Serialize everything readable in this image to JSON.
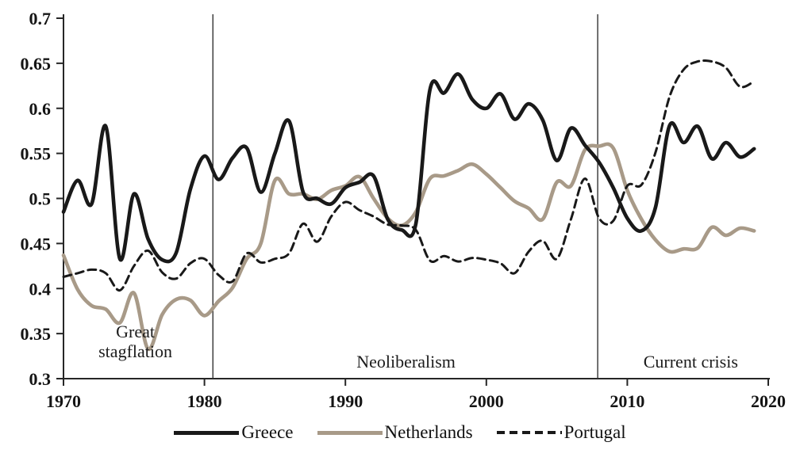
{
  "chart_data": {
    "type": "line",
    "title": "",
    "xlabel": "",
    "ylabel": "",
    "xlim": [
      1970,
      2020
    ],
    "ylim": [
      0.3,
      0.7
    ],
    "grid": false,
    "legend_position": "bottom-center",
    "x_ticks": {
      "values": [
        1970,
        1980,
        1990,
        2000,
        2010,
        2020
      ],
      "labels": [
        "1970",
        "1980",
        "1990",
        "2000",
        "2010",
        "2020"
      ]
    },
    "y_ticks": {
      "values": [
        0.3,
        0.35,
        0.4,
        0.45,
        0.5,
        0.55,
        0.6,
        0.65,
        0.7
      ],
      "labels": [
        "0.3",
        "0.35",
        "0.4",
        "0.45",
        "0.5",
        "0.55",
        "0.6",
        "0.65",
        "0.7"
      ]
    },
    "years": [
      1970,
      1971,
      1972,
      1973,
      1974,
      1975,
      1976,
      1977,
      1978,
      1979,
      1980,
      1981,
      1982,
      1983,
      1984,
      1985,
      1986,
      1987,
      1988,
      1989,
      1990,
      1991,
      1992,
      1993,
      1994,
      1995,
      1996,
      1997,
      1998,
      1999,
      2000,
      2001,
      2002,
      2003,
      2004,
      2005,
      2006,
      2007,
      2008,
      2009,
      2010,
      2011,
      2012,
      2013,
      2014,
      2015,
      2016,
      2017,
      2018,
      2019
    ],
    "series": [
      {
        "name": "Greece",
        "color": "#191919",
        "line_style": "solid",
        "line_width": 4.6,
        "values": [
          0.485,
          0.52,
          0.494,
          0.58,
          0.433,
          0.505,
          0.455,
          0.432,
          0.44,
          0.51,
          0.547,
          0.521,
          0.545,
          0.556,
          0.507,
          0.55,
          0.586,
          0.507,
          0.5,
          0.494,
          0.512,
          0.518,
          0.525,
          0.477,
          0.465,
          0.472,
          0.621,
          0.617,
          0.638,
          0.61,
          0.6,
          0.616,
          0.588,
          0.605,
          0.587,
          0.542,
          0.578,
          0.559,
          0.54,
          0.512,
          0.478,
          0.464,
          0.49,
          0.581,
          0.562,
          0.58,
          0.544,
          0.562,
          0.546,
          0.555
        ]
      },
      {
        "name": "Netherlands",
        "color": "#a89a88",
        "line_style": "solid",
        "line_width": 4.6,
        "values": [
          0.437,
          0.399,
          0.381,
          0.377,
          0.362,
          0.395,
          0.333,
          0.371,
          0.388,
          0.387,
          0.37,
          0.386,
          0.401,
          0.433,
          0.45,
          0.52,
          0.505,
          0.505,
          0.499,
          0.509,
          0.514,
          0.524,
          0.5,
          0.478,
          0.47,
          0.485,
          0.522,
          0.525,
          0.531,
          0.538,
          0.527,
          0.512,
          0.497,
          0.489,
          0.477,
          0.518,
          0.514,
          0.554,
          0.558,
          0.556,
          0.509,
          0.477,
          0.454,
          0.441,
          0.444,
          0.445,
          0.468,
          0.459,
          0.467,
          0.464
        ]
      },
      {
        "name": "Portugal",
        "color": "#191919",
        "line_style": "dashed",
        "line_width": 3,
        "values": [
          0.413,
          0.417,
          0.421,
          0.417,
          0.398,
          0.425,
          0.442,
          0.418,
          0.411,
          0.428,
          0.433,
          0.415,
          0.408,
          0.439,
          0.429,
          0.433,
          0.439,
          0.472,
          0.452,
          0.48,
          0.496,
          0.487,
          0.48,
          0.471,
          0.47,
          0.465,
          0.431,
          0.436,
          0.43,
          0.434,
          0.432,
          0.428,
          0.417,
          0.441,
          0.453,
          0.433,
          0.477,
          0.522,
          0.478,
          0.475,
          0.514,
          0.515,
          0.551,
          0.613,
          0.643,
          0.652,
          0.652,
          0.645,
          0.624,
          0.63
        ]
      }
    ],
    "era_dividers": [
      1980.6,
      2007.9
    ],
    "era_labels": [
      {
        "text": "Great stagflation",
        "year": 1975.1
      },
      {
        "text": "Neoliberalism",
        "year": 1994.3
      },
      {
        "text": "Current crisis",
        "year": 2014.5
      }
    ],
    "colors": {
      "line_black": "#191919",
      "line_tan": "#a89a88",
      "axis": "#262626"
    }
  }
}
